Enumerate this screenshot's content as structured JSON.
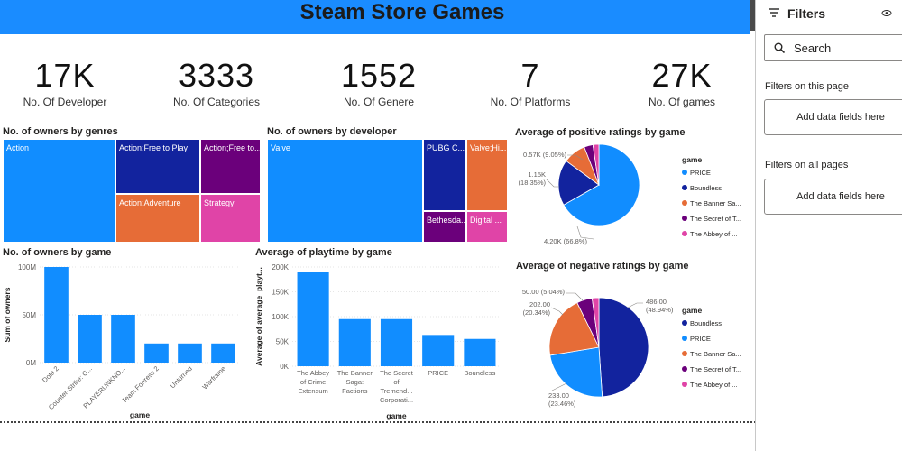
{
  "header": {
    "title": "Steam Store Games"
  },
  "kpis": [
    {
      "value": "17K",
      "label": "No. Of Developer"
    },
    {
      "value": "3333",
      "label": "No. Of Categories"
    },
    {
      "value": "1552",
      "label": "No. Of Genere"
    },
    {
      "value": "7",
      "label": "No. Of Platforms"
    },
    {
      "value": "27K",
      "label": "No. Of games"
    }
  ],
  "colors": {
    "blue": "#118dff",
    "navy": "#12239e",
    "orange": "#e66c37",
    "purple": "#6b007b",
    "pink": "#e044a7"
  },
  "filters": {
    "title": "Filters",
    "search_placeholder": "Search",
    "on_this_page": "Filters on this page",
    "on_all_pages": "Filters on all pages",
    "add_fields": "Add data fields here"
  },
  "chart_data": [
    {
      "type": "treemap",
      "title": "No. of owners by genres",
      "tiles": [
        {
          "label": "Action",
          "color": "#118dff"
        },
        {
          "label": "Action;Free to Play",
          "color": "#12239e"
        },
        {
          "label": "Action;Free to...",
          "color": "#6b007b"
        },
        {
          "label": "Action;Adventure",
          "color": "#e66c37"
        },
        {
          "label": "Strategy",
          "color": "#e044a7"
        }
      ]
    },
    {
      "type": "treemap",
      "title": "No. of owners by developer",
      "tiles": [
        {
          "label": "Valve",
          "color": "#118dff"
        },
        {
          "label": "PUBG C...",
          "color": "#12239e"
        },
        {
          "label": "Valve;Hi...",
          "color": "#e66c37"
        },
        {
          "label": "Bethesda...",
          "color": "#6b007b"
        },
        {
          "label": "Digital ...",
          "color": "#e044a7"
        }
      ]
    },
    {
      "type": "pie",
      "title": "Average of positive ratings by game",
      "legend_title": "game",
      "slices": [
        {
          "name": "PRICE",
          "value": 4.2,
          "label": "4.20K (66.8%)",
          "color": "#118dff"
        },
        {
          "name": "Boundless",
          "value": 1.15,
          "label": "1.15K (18.35%)",
          "color": "#12239e"
        },
        {
          "name": "The Banner Sa...",
          "value": 0.57,
          "label": "0.57K (9.05%)",
          "color": "#e66c37"
        },
        {
          "name": "The Secret of T...",
          "value": 0.22,
          "label": "",
          "color": "#6b007b"
        },
        {
          "name": "The Abbey of ...",
          "value": 0.15,
          "label": "",
          "color": "#e044a7"
        }
      ]
    },
    {
      "type": "bar",
      "title": "No. of owners by game",
      "xlabel": "game",
      "ylabel": "Sum of owners",
      "categories": [
        "Dota 2",
        "Counter-Strike: G...",
        "PLAYERUNKNO...",
        "Team Fortress 2",
        "Unturned",
        "Warframe"
      ],
      "values": [
        100,
        50,
        50,
        20,
        20,
        20
      ],
      "ylim": [
        0,
        100
      ],
      "yticks": [
        "0M",
        "50M",
        "100M"
      ],
      "tickvals": [
        0,
        50,
        100
      ]
    },
    {
      "type": "bar",
      "title": "Average of playtime by game",
      "xlabel": "game",
      "ylabel": "Average of average_playt...",
      "categories": [
        [
          "The Abbey",
          "of Crime",
          "Extensum"
        ],
        [
          "The Banner",
          "Saga:",
          "Factions"
        ],
        [
          "The Secret",
          "of",
          "Tremend...",
          "Corporati..."
        ],
        [
          "PRICE"
        ],
        [
          "Boundless"
        ]
      ],
      "values": [
        190,
        95,
        95,
        63,
        55
      ],
      "ylim": [
        0,
        200
      ],
      "yticks": [
        "0K",
        "50K",
        "100K",
        "150K",
        "200K"
      ],
      "tickvals": [
        0,
        50,
        100,
        150,
        200
      ]
    },
    {
      "type": "pie",
      "title": "Average of negative ratings by game",
      "legend_title": "game",
      "slices": [
        {
          "name": "Boundless",
          "value": 486.0,
          "label": "486.00 (48.94%)",
          "color": "#12239e"
        },
        {
          "name": "PRICE",
          "value": 233.0,
          "label": "233.00 (23.46%)",
          "color": "#118dff"
        },
        {
          "name": "The Banner Sa...",
          "value": 202.0,
          "label": "202.00 (20.34%)",
          "color": "#e66c37"
        },
        {
          "name": "The Secret of T...",
          "value": 50.0,
          "label": "50.00 (5.04%)",
          "color": "#6b007b"
        },
        {
          "name": "The Abbey of ...",
          "value": 22.0,
          "label": "",
          "color": "#e044a7"
        }
      ]
    }
  ]
}
